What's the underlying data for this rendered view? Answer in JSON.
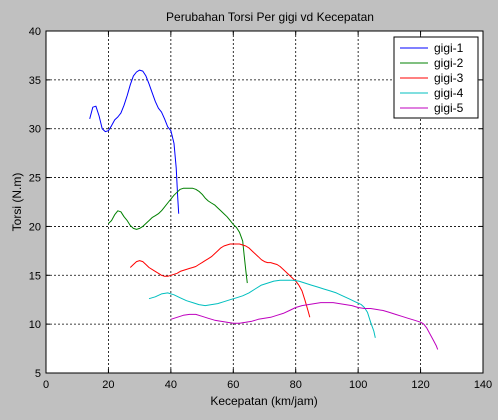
{
  "chart_data": {
    "type": "line",
    "title": "Perubahan Torsi Per gigi vd Kecepatan",
    "xlabel": "Kecepatan (km/jam)",
    "ylabel": "Torsi (N.m)",
    "xlim": [
      0,
      140
    ],
    "ylim": [
      5,
      40
    ],
    "xticks": [
      0,
      20,
      40,
      60,
      80,
      100,
      120,
      140
    ],
    "yticks": [
      5,
      10,
      15,
      20,
      25,
      30,
      35,
      40
    ],
    "grid": true,
    "grid_style": "dotted",
    "legend_position": "top-right",
    "series": [
      {
        "name": "gigi-1",
        "color": "#0000ff",
        "points": [
          [
            14,
            31
          ],
          [
            15,
            32.2
          ],
          [
            16,
            32.3
          ],
          [
            17,
            31.3
          ],
          [
            18,
            30
          ],
          [
            19,
            29.7
          ],
          [
            20,
            29.8
          ],
          [
            21,
            30.3
          ],
          [
            22,
            30.9
          ],
          [
            23,
            31.2
          ],
          [
            24,
            31.6
          ],
          [
            25,
            32.4
          ],
          [
            26,
            33.4
          ],
          [
            27,
            34.5
          ],
          [
            28,
            35.4
          ],
          [
            29,
            35.8
          ],
          [
            30,
            36
          ],
          [
            31,
            35.9
          ],
          [
            32,
            35.4
          ],
          [
            33,
            34.6
          ],
          [
            34,
            33.7
          ],
          [
            35,
            32.8
          ],
          [
            36,
            32.1
          ],
          [
            37,
            31.7
          ],
          [
            38,
            31
          ],
          [
            39,
            30.2
          ],
          [
            40,
            29.8
          ],
          [
            41,
            28.5
          ],
          [
            41.7,
            26
          ],
          [
            42.2,
            23
          ],
          [
            42.5,
            21.3
          ]
        ]
      },
      {
        "name": "gigi-2",
        "color": "#008000",
        "points": [
          [
            20,
            20.3
          ],
          [
            21,
            20.6
          ],
          [
            22,
            21.2
          ],
          [
            23,
            21.6
          ],
          [
            24,
            21.5
          ],
          [
            25,
            21
          ],
          [
            26,
            20.6
          ],
          [
            27,
            20.1
          ],
          [
            28,
            19.8
          ],
          [
            29,
            19.7
          ],
          [
            30,
            19.8
          ],
          [
            31,
            20
          ],
          [
            32,
            20.3
          ],
          [
            33,
            20.6
          ],
          [
            34,
            20.9
          ],
          [
            35,
            21.1
          ],
          [
            36,
            21.3
          ],
          [
            37,
            21.6
          ],
          [
            38,
            22
          ],
          [
            39,
            22.4
          ],
          [
            40,
            22.8
          ],
          [
            41,
            23.2
          ],
          [
            42,
            23.5
          ],
          [
            43,
            23.8
          ],
          [
            44,
            23.9
          ],
          [
            45,
            23.9
          ],
          [
            46,
            23.9
          ],
          [
            47,
            23.9
          ],
          [
            48,
            23.8
          ],
          [
            49,
            23.6
          ],
          [
            50,
            23.3
          ],
          [
            51,
            22.9
          ],
          [
            52,
            22.6
          ],
          [
            53,
            22.4
          ],
          [
            54,
            22.2
          ],
          [
            55,
            21.9
          ],
          [
            56,
            21.6
          ],
          [
            57,
            21.3
          ],
          [
            58,
            21
          ],
          [
            59,
            20.6
          ],
          [
            60,
            20.2
          ],
          [
            61,
            19.9
          ],
          [
            62,
            19.4
          ],
          [
            63,
            18.5
          ],
          [
            63.5,
            17
          ],
          [
            64,
            15.5
          ],
          [
            64.5,
            14.2
          ]
        ]
      },
      {
        "name": "gigi-3",
        "color": "#ff0000",
        "points": [
          [
            27,
            15.8
          ],
          [
            28,
            16.1
          ],
          [
            29,
            16.4
          ],
          [
            30,
            16.5
          ],
          [
            31,
            16.4
          ],
          [
            32,
            16.1
          ],
          [
            33,
            15.8
          ],
          [
            34,
            15.6
          ],
          [
            35,
            15.4
          ],
          [
            36,
            15.2
          ],
          [
            37,
            15
          ],
          [
            38,
            14.9
          ],
          [
            39,
            14.9
          ],
          [
            40,
            15
          ],
          [
            41,
            15.1
          ],
          [
            42,
            15.2
          ],
          [
            43,
            15.4
          ],
          [
            44,
            15.5
          ],
          [
            45,
            15.6
          ],
          [
            46,
            15.7
          ],
          [
            47,
            15.8
          ],
          [
            48,
            15.9
          ],
          [
            49,
            16.1
          ],
          [
            50,
            16.3
          ],
          [
            51,
            16.5
          ],
          [
            52,
            16.7
          ],
          [
            53,
            16.9
          ],
          [
            54,
            17.2
          ],
          [
            55,
            17.5
          ],
          [
            56,
            17.8
          ],
          [
            57,
            18
          ],
          [
            58,
            18.1
          ],
          [
            59,
            18.2
          ],
          [
            60,
            18.2
          ],
          [
            61,
            18.2
          ],
          [
            62,
            18.2
          ],
          [
            63,
            18.1
          ],
          [
            64,
            18
          ],
          [
            65,
            17.8
          ],
          [
            66,
            17.5
          ],
          [
            67,
            17.2
          ],
          [
            68,
            16.9
          ],
          [
            69,
            16.6
          ],
          [
            70,
            16.4
          ],
          [
            71,
            16.3
          ],
          [
            72,
            16.3
          ],
          [
            73,
            16.2
          ],
          [
            74,
            16.1
          ],
          [
            75,
            15.9
          ],
          [
            76,
            15.6
          ],
          [
            77,
            15.3
          ],
          [
            78,
            15
          ],
          [
            79,
            14.7
          ],
          [
            80,
            14.4
          ],
          [
            81,
            14
          ],
          [
            82,
            13.4
          ],
          [
            83,
            12.4
          ],
          [
            84,
            11.3
          ],
          [
            84.5,
            10.7
          ]
        ]
      },
      {
        "name": "gigi-4",
        "color": "#00bfbf",
        "points": [
          [
            33,
            12.6
          ],
          [
            35,
            12.8
          ],
          [
            37,
            13.1
          ],
          [
            39,
            13.2
          ],
          [
            41,
            13
          ],
          [
            43,
            12.7
          ],
          [
            45,
            12.4
          ],
          [
            47,
            12.2
          ],
          [
            49,
            12
          ],
          [
            51,
            11.9
          ],
          [
            53,
            12
          ],
          [
            55,
            12.1
          ],
          [
            57,
            12.3
          ],
          [
            59,
            12.5
          ],
          [
            61,
            12.7
          ],
          [
            63,
            12.9
          ],
          [
            65,
            13.2
          ],
          [
            67,
            13.6
          ],
          [
            69,
            14
          ],
          [
            71,
            14.2
          ],
          [
            73,
            14.4
          ],
          [
            75,
            14.5
          ],
          [
            77,
            14.5
          ],
          [
            79,
            14.5
          ],
          [
            81,
            14.4
          ],
          [
            83,
            14.2
          ],
          [
            85,
            14
          ],
          [
            87,
            13.8
          ],
          [
            89,
            13.6
          ],
          [
            91,
            13.4
          ],
          [
            93,
            13.2
          ],
          [
            95,
            12.9
          ],
          [
            97,
            12.6
          ],
          [
            99,
            12.3
          ],
          [
            101,
            12
          ],
          [
            102,
            11.7
          ],
          [
            103,
            11.2
          ],
          [
            104,
            10.2
          ],
          [
            105,
            9.3
          ],
          [
            105.5,
            8.6
          ]
        ]
      },
      {
        "name": "gigi-5",
        "color": "#bf00bf",
        "points": [
          [
            40,
            10.5
          ],
          [
            42,
            10.7
          ],
          [
            44,
            10.9
          ],
          [
            46,
            11
          ],
          [
            48,
            11
          ],
          [
            50,
            10.8
          ],
          [
            52,
            10.6
          ],
          [
            54,
            10.4
          ],
          [
            56,
            10.3
          ],
          [
            58,
            10.2
          ],
          [
            60,
            10.1
          ],
          [
            62,
            10.1
          ],
          [
            64,
            10.2
          ],
          [
            66,
            10.3
          ],
          [
            68,
            10.5
          ],
          [
            70,
            10.6
          ],
          [
            72,
            10.7
          ],
          [
            74,
            10.9
          ],
          [
            76,
            11.1
          ],
          [
            78,
            11.4
          ],
          [
            80,
            11.7
          ],
          [
            82,
            11.9
          ],
          [
            84,
            12
          ],
          [
            86,
            12.1
          ],
          [
            88,
            12.2
          ],
          [
            90,
            12.2
          ],
          [
            92,
            12.2
          ],
          [
            94,
            12.1
          ],
          [
            96,
            12
          ],
          [
            98,
            11.9
          ],
          [
            100,
            11.7
          ],
          [
            102,
            11.6
          ],
          [
            104,
            11.6
          ],
          [
            106,
            11.5
          ],
          [
            108,
            11.4
          ],
          [
            110,
            11.2
          ],
          [
            112,
            11
          ],
          [
            114,
            10.8
          ],
          [
            116,
            10.6
          ],
          [
            118,
            10.4
          ],
          [
            120,
            10.2
          ],
          [
            121,
            10
          ],
          [
            122,
            9.6
          ],
          [
            123,
            9
          ],
          [
            124,
            8.4
          ],
          [
            125,
            7.8
          ],
          [
            125.5,
            7.4
          ]
        ]
      }
    ]
  }
}
